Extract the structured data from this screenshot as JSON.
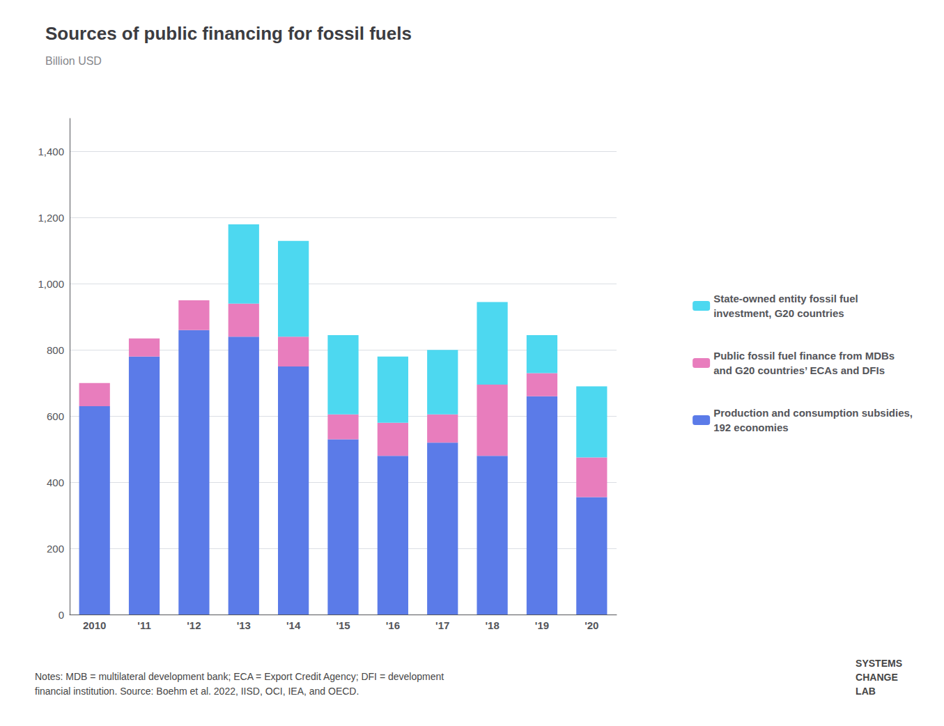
{
  "chart_data": {
    "type": "bar",
    "title": "Sources of public financing for fossil fuels",
    "subtitle": "Billion USD",
    "categories": [
      "2010",
      "'11",
      "'12",
      "'13",
      "'14",
      "'15",
      "'16",
      "'17",
      "'18",
      "'19",
      "'20"
    ],
    "series": [
      {
        "name": "Production and consumption subsidies,\n192 economies",
        "color": "#5b7be8",
        "values": [
          630,
          780,
          860,
          840,
          750,
          530,
          480,
          520,
          480,
          660,
          355
        ]
      },
      {
        "name": "Public fossil fuel finance from MDBs\nand G20 countries’ ECAs and DFIs",
        "color": "#e87dbd",
        "values": [
          70,
          55,
          90,
          100,
          90,
          75,
          100,
          85,
          215,
          70,
          120
        ]
      },
      {
        "name": "State-owned entity fossil fuel\ninvestment, G20 countries",
        "color": "#4dd8f0",
        "values": [
          0,
          0,
          0,
          240,
          290,
          240,
          200,
          195,
          250,
          115,
          215
        ]
      }
    ],
    "stacked": true,
    "ylim": [
      0,
      1500
    ],
    "yticks": [
      0,
      200,
      400,
      600,
      800,
      {
        "value": 1000,
        "label": "1,000"
      },
      {
        "value": 1200,
        "label": "1,200"
      },
      {
        "value": 1400,
        "label": "1,400"
      }
    ],
    "grid": true,
    "legend": "right",
    "annotations": [
      "Notes: MDB = multilateral development bank; ECA = Export Credit Agency; DFI = development\nfinancial institution. Source: Boehm et al. 2022, IISD, OCI, IEA, and OECD.",
      "SYSTEMS\nCHANGE\nLAB"
    ]
  }
}
